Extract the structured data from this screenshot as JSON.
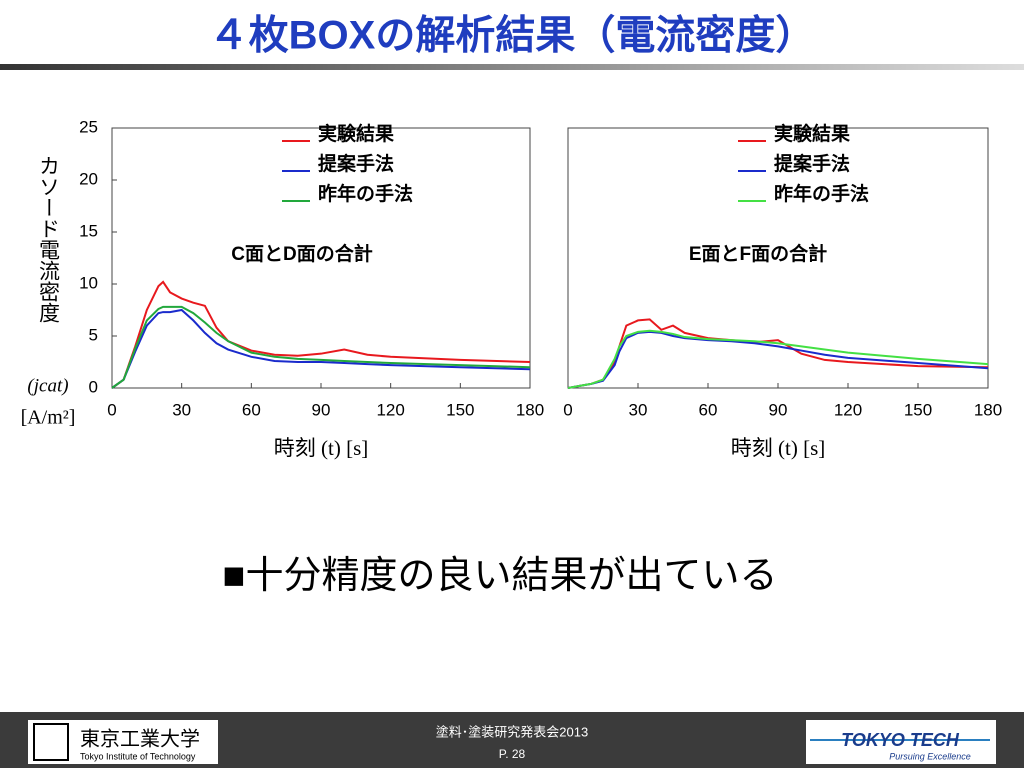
{
  "slide": {
    "title": "４枚BOXの解析結果（電流密度）",
    "bullet": "■十分精度の良い結果が出ている",
    "footer": {
      "university": "東京工業大学",
      "university_en": "Tokyo Institute of Technology",
      "event": "塗料･塗装研究発表会2013",
      "page": "P. 28",
      "brand": "TOKYO TECH",
      "brand_tagline": "Pursuing Excellence"
    }
  },
  "chart_data": [
    {
      "type": "line",
      "ylabel": "カソード電流密度",
      "ylabel_symbol": "(jcat)",
      "ylabel_unit": "[A/m²]",
      "xlabel": "時刻 (t) [s]",
      "annotation": "C面とD面の合計",
      "x": [
        0,
        5,
        10,
        15,
        20,
        22,
        25,
        30,
        35,
        40,
        45,
        50,
        60,
        70,
        80,
        90,
        100,
        110,
        120,
        150,
        180
      ],
      "xlim": [
        0,
        180
      ],
      "xticks": [
        0,
        30,
        60,
        90,
        120,
        150,
        180
      ],
      "ylim": [
        0,
        25
      ],
      "yticks": [
        0,
        5,
        10,
        15,
        20,
        25
      ],
      "series": [
        {
          "name": "実験結果",
          "color": "#e8191e",
          "values": [
            0,
            0.8,
            4,
            7.5,
            9.8,
            10.2,
            9.2,
            8.6,
            8.2,
            7.9,
            5.8,
            4.5,
            3.6,
            3.2,
            3.1,
            3.3,
            3.7,
            3.2,
            3.0,
            2.7,
            2.5
          ]
        },
        {
          "name": "提案手法",
          "color": "#1a2bcc",
          "values": [
            0,
            0.8,
            3.5,
            6,
            7.2,
            7.3,
            7.3,
            7.5,
            6.5,
            5.3,
            4.3,
            3.7,
            3.0,
            2.6,
            2.5,
            2.5,
            2.4,
            2.3,
            2.2,
            2.0,
            1.8
          ]
        },
        {
          "name": "昨年の手法",
          "color": "#22a83c",
          "values": [
            0,
            0.8,
            3.8,
            6.5,
            7.6,
            7.8,
            7.8,
            7.8,
            7.2,
            6.3,
            5.3,
            4.5,
            3.4,
            3.0,
            2.8,
            2.7,
            2.6,
            2.5,
            2.4,
            2.2,
            2.0
          ]
        }
      ]
    },
    {
      "type": "line",
      "xlabel": "時刻 (t) [s]",
      "annotation": "E面とF面の合計",
      "x": [
        0,
        5,
        10,
        15,
        20,
        22,
        25,
        30,
        35,
        40,
        45,
        50,
        60,
        70,
        80,
        90,
        100,
        110,
        120,
        150,
        180
      ],
      "xlim": [
        0,
        180
      ],
      "xticks": [
        0,
        30,
        60,
        90,
        120,
        150,
        180
      ],
      "ylim": [
        0,
        25
      ],
      "series": [
        {
          "name": "実験結果",
          "color": "#e8191e",
          "values": [
            0,
            0.2,
            0.4,
            0.8,
            2.5,
            4,
            6,
            6.5,
            6.6,
            5.6,
            6,
            5.3,
            4.8,
            4.6,
            4.4,
            4.6,
            3.3,
            2.7,
            2.5,
            2.1,
            2.0
          ]
        },
        {
          "name": "提案手法",
          "color": "#1a2bcc",
          "values": [
            0,
            0.2,
            0.4,
            0.7,
            2.2,
            3.5,
            4.8,
            5.3,
            5.4,
            5.3,
            5.0,
            4.8,
            4.6,
            4.5,
            4.3,
            4.0,
            3.6,
            3.2,
            2.9,
            2.4,
            1.9
          ]
        },
        {
          "name": "昨年の手法",
          "color": "#44e044",
          "values": [
            0,
            0.2,
            0.4,
            0.8,
            2.8,
            4,
            5,
            5.4,
            5.5,
            5.4,
            5.2,
            4.9,
            4.7,
            4.6,
            4.5,
            4.3,
            4.0,
            3.7,
            3.4,
            2.8,
            2.3
          ]
        }
      ]
    }
  ]
}
